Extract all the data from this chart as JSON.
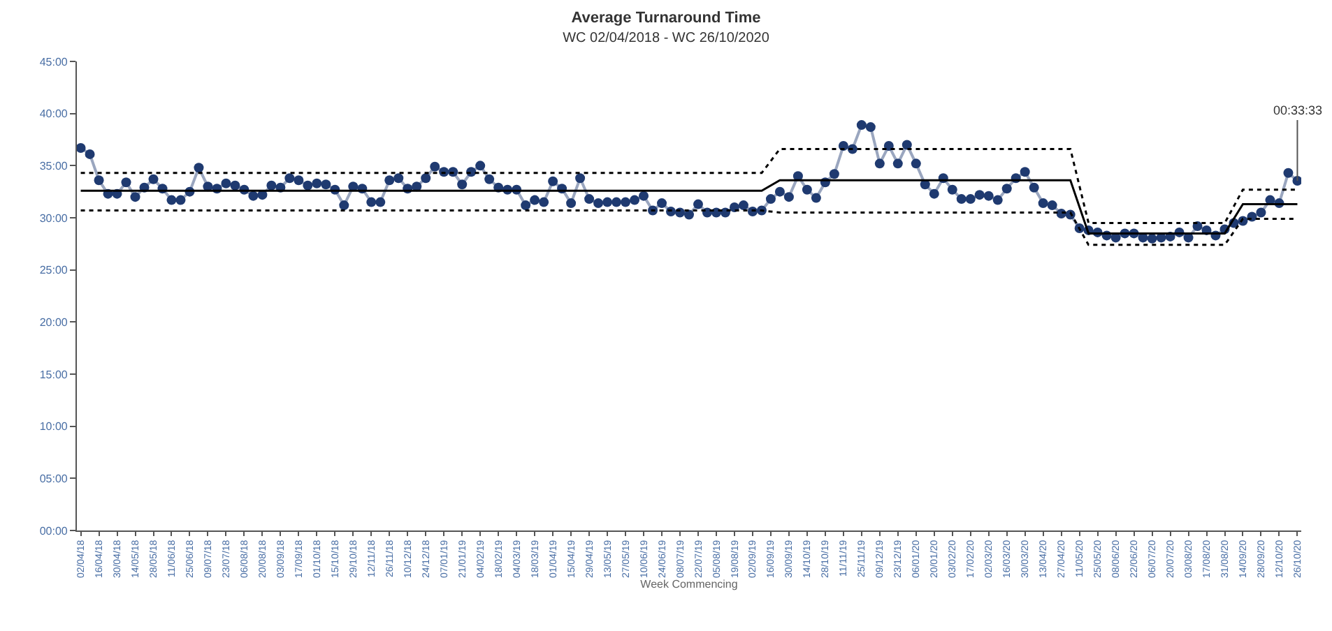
{
  "chart_data": {
    "type": "line",
    "title": "Average Turnaround Time",
    "subtitle": "WC 02/04/2018 - WC 26/10/2020",
    "xlabel": "Week Commencing",
    "x": [
      "2018-04-02",
      "2018-04-09",
      "2018-04-16",
      "2018-04-23",
      "2018-04-30",
      "2018-05-07",
      "2018-05-14",
      "2018-05-21",
      "2018-05-28",
      "2018-06-04",
      "2018-06-11",
      "2018-06-18",
      "2018-06-25",
      "2018-07-02",
      "2018-07-09",
      "2018-07-16",
      "2018-07-23",
      "2018-07-30",
      "2018-08-06",
      "2018-08-13",
      "2018-08-20",
      "2018-08-27",
      "2018-09-03",
      "2018-09-10",
      "2018-09-17",
      "2018-09-24",
      "2018-10-01",
      "2018-10-08",
      "2018-10-15",
      "2018-10-22",
      "2018-10-29",
      "2018-11-05",
      "2018-11-12",
      "2018-11-19",
      "2018-11-26",
      "2018-12-03",
      "2018-12-10",
      "2018-12-17",
      "2018-12-24",
      "2018-12-31",
      "2019-01-07",
      "2019-01-14",
      "2019-01-21",
      "2019-01-28",
      "2019-02-04",
      "2019-02-11",
      "2019-02-18",
      "2019-02-25",
      "2019-03-04",
      "2019-03-11",
      "2019-03-18",
      "2019-03-25",
      "2019-04-01",
      "2019-04-08",
      "2019-04-15",
      "2019-04-22",
      "2019-04-29",
      "2019-05-06",
      "2019-05-13",
      "2019-05-20",
      "2019-05-27",
      "2019-06-03",
      "2019-06-10",
      "2019-06-17",
      "2019-06-24",
      "2019-07-01",
      "2019-07-08",
      "2019-07-15",
      "2019-07-22",
      "2019-07-29",
      "2019-08-05",
      "2019-08-12",
      "2019-08-19",
      "2019-08-26",
      "2019-09-02",
      "2019-09-09",
      "2019-09-16",
      "2019-09-23",
      "2019-09-30",
      "2019-10-07",
      "2019-10-14",
      "2019-10-21",
      "2019-10-28",
      "2019-11-04",
      "2019-11-11",
      "2019-11-18",
      "2019-11-25",
      "2019-12-02",
      "2019-12-09",
      "2019-12-16",
      "2019-12-23",
      "2019-12-30",
      "2020-01-06",
      "2020-01-13",
      "2020-01-20",
      "2020-01-27",
      "2020-02-03",
      "2020-02-10",
      "2020-02-17",
      "2020-02-24",
      "2020-03-02",
      "2020-03-09",
      "2020-03-16",
      "2020-03-23",
      "2020-03-30",
      "2020-04-06",
      "2020-04-13",
      "2020-04-20",
      "2020-04-27",
      "2020-05-04",
      "2020-05-11",
      "2020-05-18",
      "2020-05-25",
      "2020-06-01",
      "2020-06-08",
      "2020-06-15",
      "2020-06-22",
      "2020-06-29",
      "2020-07-06",
      "2020-07-13",
      "2020-07-20",
      "2020-07-27",
      "2020-08-03",
      "2020-08-10",
      "2020-08-17",
      "2020-08-24",
      "2020-08-31",
      "2020-09-07",
      "2020-09-14",
      "2020-09-21",
      "2020-09-28",
      "2020-10-05",
      "2020-10-12",
      "2020-10-19",
      "2020-10-26"
    ],
    "series": [
      {
        "color": "#1f3a70",
        "marker": "circle",
        "line_style": "solid",
        "values": [
          36.7,
          36.1,
          33.6,
          32.3,
          32.3,
          33.4,
          32.0,
          32.9,
          33.7,
          32.8,
          31.7,
          31.7,
          32.5,
          34.8,
          33.0,
          32.8,
          33.3,
          33.1,
          32.7,
          32.1,
          32.2,
          33.1,
          32.9,
          33.8,
          33.6,
          33.1,
          33.3,
          33.2,
          32.7,
          31.2,
          33.0,
          32.8,
          31.5,
          31.5,
          33.6,
          33.8,
          32.8,
          33.0,
          33.8,
          34.9,
          34.4,
          34.4,
          33.2,
          34.4,
          35.0,
          33.7,
          32.9,
          32.7,
          32.7,
          31.2,
          31.7,
          31.5,
          33.5,
          32.8,
          31.4,
          33.8,
          31.8,
          31.4,
          31.5,
          31.5,
          31.5,
          31.7,
          32.1,
          30.7,
          31.4,
          30.6,
          30.5,
          30.3,
          31.3,
          30.5,
          30.5,
          30.5,
          31.0,
          31.2,
          30.6,
          30.7,
          31.8,
          32.5,
          32.0,
          34.0,
          32.7,
          31.9,
          33.4,
          34.2,
          36.9,
          36.6,
          38.9,
          38.7,
          35.2,
          36.9,
          35.2,
          37.0,
          35.2,
          33.2,
          32.3,
          33.8,
          32.7,
          31.8,
          31.8,
          32.2,
          32.1,
          31.7,
          32.8,
          33.8,
          34.4,
          32.9,
          31.4,
          31.2,
          30.4,
          30.3,
          29.0,
          28.8,
          28.6,
          28.3,
          28.1,
          28.5,
          28.5,
          28.1,
          28.0,
          28.1,
          28.2,
          28.6,
          28.1,
          29.2,
          28.8,
          28.3,
          28.9,
          29.5,
          29.7,
          30.1,
          30.5,
          31.7,
          31.4,
          34.3,
          33.55
        ]
      },
      {
        "type": "line",
        "color": "#000000",
        "marker": "none",
        "line_style": "solid",
        "x": [
          "2018-04-02",
          "2019-09-09",
          "2019-09-23",
          "2020-05-04",
          "2020-05-18",
          "2020-08-31",
          "2020-09-14",
          "2020-10-26"
        ],
        "values": [
          32.6,
          32.6,
          33.6,
          33.6,
          28.5,
          28.5,
          31.3,
          31.3
        ]
      },
      {
        "type": "line",
        "color": "#000000",
        "marker": "none",
        "line_style": "dotted",
        "x": [
          "2018-04-02",
          "2019-09-09",
          "2019-09-23",
          "2020-05-04",
          "2020-05-18",
          "2020-08-31",
          "2020-09-14",
          "2020-10-26"
        ],
        "values": [
          34.3,
          34.3,
          36.6,
          36.6,
          29.5,
          29.5,
          32.7,
          32.7
        ]
      },
      {
        "type": "line",
        "color": "#000000",
        "marker": "none",
        "line_style": "dotted",
        "x": [
          "2018-04-02",
          "2019-09-09",
          "2019-09-23",
          "2020-05-04",
          "2020-05-18",
          "2020-08-31",
          "2020-09-14",
          "2020-10-26"
        ],
        "values": [
          30.7,
          30.7,
          30.5,
          30.5,
          27.4,
          27.4,
          29.9,
          29.9
        ]
      }
    ],
    "annotations": [
      {
        "text": "00:33:33",
        "x": "2020-10-26",
        "y": 33.55
      }
    ],
    "ylim": [
      0,
      45
    ],
    "yticks": [
      {
        "value": 0,
        "label": "00:00"
      },
      {
        "value": 5,
        "label": "05:00"
      },
      {
        "value": 10,
        "label": "10:00"
      },
      {
        "value": 15,
        "label": "15:00"
      },
      {
        "value": 20,
        "label": "20:00"
      },
      {
        "value": 25,
        "label": "25:00"
      },
      {
        "value": 30,
        "label": "30:00"
      },
      {
        "value": 35,
        "label": "35:00"
      },
      {
        "value": 40,
        "label": "40:00"
      },
      {
        "value": 45,
        "label": "45:00"
      }
    ],
    "xlim": [
      "2018-03-30",
      "2020-10-29"
    ],
    "xticks": [
      {
        "value": "2018-04-02",
        "label": "02/04/18"
      },
      {
        "value": "2018-04-16",
        "label": "16/04/18"
      },
      {
        "value": "2018-04-30",
        "label": "30/04/18"
      },
      {
        "value": "2018-05-14",
        "label": "14/05/18"
      },
      {
        "value": "2018-05-28",
        "label": "28/05/18"
      },
      {
        "value": "2018-06-11",
        "label": "11/06/18"
      },
      {
        "value": "2018-06-25",
        "label": "25/06/18"
      },
      {
        "value": "2018-07-09",
        "label": "09/07/18"
      },
      {
        "value": "2018-07-23",
        "label": "23/07/18"
      },
      {
        "value": "2018-08-06",
        "label": "06/08/18"
      },
      {
        "value": "2018-08-20",
        "label": "20/08/18"
      },
      {
        "value": "2018-09-03",
        "label": "03/09/18"
      },
      {
        "value": "2018-09-17",
        "label": "17/09/18"
      },
      {
        "value": "2018-10-01",
        "label": "01/10/18"
      },
      {
        "value": "2018-10-15",
        "label": "15/10/18"
      },
      {
        "value": "2018-10-29",
        "label": "29/10/18"
      },
      {
        "value": "2018-11-12",
        "label": "12/11/18"
      },
      {
        "value": "2018-11-26",
        "label": "26/11/18"
      },
      {
        "value": "2018-12-10",
        "label": "10/12/18"
      },
      {
        "value": "2018-12-24",
        "label": "24/12/18"
      },
      {
        "value": "2019-01-07",
        "label": "07/01/19"
      },
      {
        "value": "2019-01-21",
        "label": "21/01/19"
      },
      {
        "value": "2019-02-04",
        "label": "04/02/19"
      },
      {
        "value": "2019-02-18",
        "label": "18/02/19"
      },
      {
        "value": "2019-03-04",
        "label": "04/03/19"
      },
      {
        "value": "2019-03-18",
        "label": "18/03/19"
      },
      {
        "value": "2019-04-01",
        "label": "01/04/19"
      },
      {
        "value": "2019-04-15",
        "label": "15/04/19"
      },
      {
        "value": "2019-04-29",
        "label": "29/04/19"
      },
      {
        "value": "2019-05-13",
        "label": "13/05/19"
      },
      {
        "value": "2019-05-27",
        "label": "27/05/19"
      },
      {
        "value": "2019-06-10",
        "label": "10/06/19"
      },
      {
        "value": "2019-06-24",
        "label": "24/06/19"
      },
      {
        "value": "2019-07-08",
        "label": "08/07/19"
      },
      {
        "value": "2019-07-22",
        "label": "22/07/19"
      },
      {
        "value": "2019-08-05",
        "label": "05/08/19"
      },
      {
        "value": "2019-08-19",
        "label": "19/08/19"
      },
      {
        "value": "2019-09-02",
        "label": "02/09/19"
      },
      {
        "value": "2019-09-16",
        "label": "16/09/19"
      },
      {
        "value": "2019-09-30",
        "label": "30/09/19"
      },
      {
        "value": "2019-10-14",
        "label": "14/10/19"
      },
      {
        "value": "2019-10-28",
        "label": "28/10/19"
      },
      {
        "value": "2019-11-11",
        "label": "11/11/19"
      },
      {
        "value": "2019-11-25",
        "label": "25/11/19"
      },
      {
        "value": "2019-12-09",
        "label": "09/12/19"
      },
      {
        "value": "2019-12-23",
        "label": "23/12/19"
      },
      {
        "value": "2020-01-06",
        "label": "06/01/20"
      },
      {
        "value": "2020-01-20",
        "label": "20/01/20"
      },
      {
        "value": "2020-02-03",
        "label": "03/02/20"
      },
      {
        "value": "2020-02-17",
        "label": "17/02/20"
      },
      {
        "value": "2020-03-02",
        "label": "02/03/20"
      },
      {
        "value": "2020-03-16",
        "label": "16/03/20"
      },
      {
        "value": "2020-03-30",
        "label": "30/03/20"
      },
      {
        "value": "2020-04-13",
        "label": "13/04/20"
      },
      {
        "value": "2020-04-27",
        "label": "27/04/20"
      },
      {
        "value": "2020-05-11",
        "label": "11/05/20"
      },
      {
        "value": "2020-05-25",
        "label": "25/05/20"
      },
      {
        "value": "2020-06-08",
        "label": "08/06/20"
      },
      {
        "value": "2020-06-22",
        "label": "22/06/20"
      },
      {
        "value": "2020-07-06",
        "label": "06/07/20"
      },
      {
        "value": "2020-07-20",
        "label": "20/07/20"
      },
      {
        "value": "2020-08-03",
        "label": "03/08/20"
      },
      {
        "value": "2020-08-17",
        "label": "17/08/20"
      },
      {
        "value": "2020-08-31",
        "label": "31/08/20"
      },
      {
        "value": "2020-09-14",
        "label": "14/09/20"
      },
      {
        "value": "2020-09-28",
        "label": "28/09/20"
      },
      {
        "value": "2020-10-12",
        "label": "12/10/20"
      },
      {
        "value": "2020-10-26",
        "label": "26/10/20"
      }
    ]
  }
}
